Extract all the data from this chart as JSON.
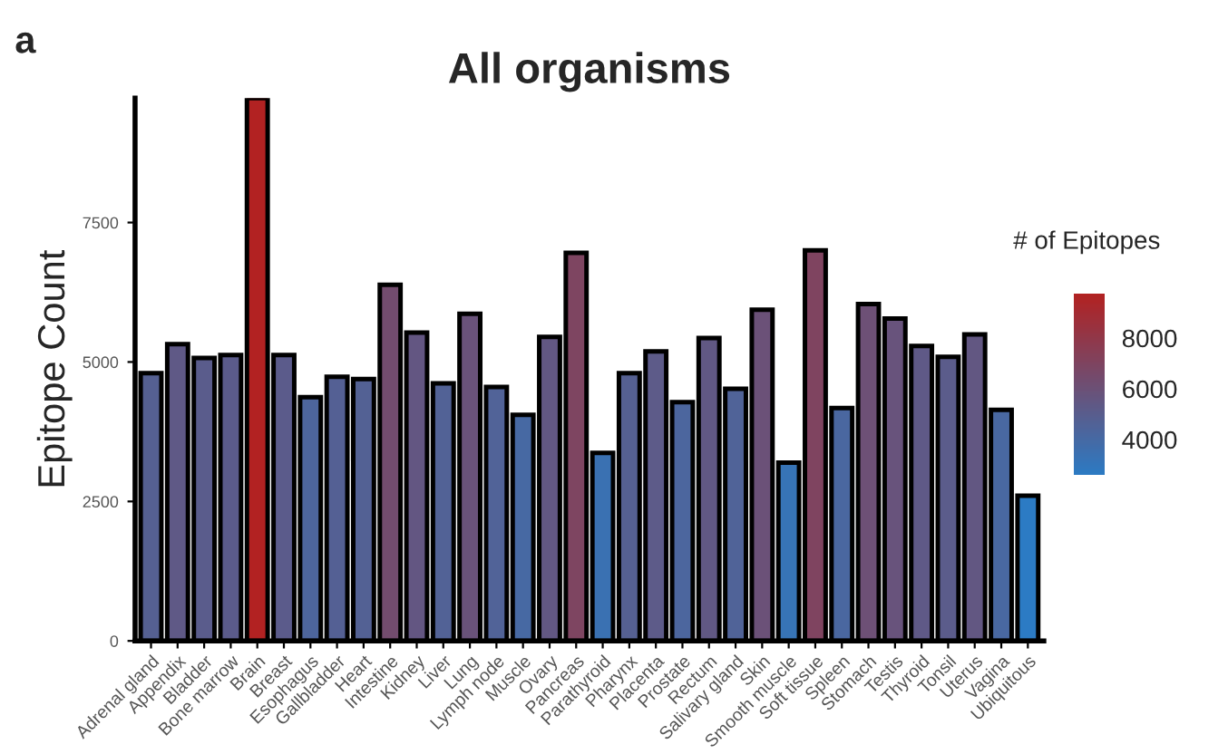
{
  "chart_data": {
    "type": "bar",
    "title": "All organisms",
    "ylabel": "Epitope Count",
    "clabel": "# of Epitopes",
    "annotations": [
      "a"
    ],
    "categories": [
      "Adrenal gland",
      "Appendix",
      "Bladder",
      "Bone marrow",
      "Brain",
      "Breast",
      "Esophagus",
      "Gallbladder",
      "Heart",
      "Intestine",
      "Kidney",
      "Liver",
      "Lung",
      "Lymph node",
      "Muscle",
      "Ovary",
      "Pancreas",
      "Parathyroid",
      "Pharynx",
      "Placenta",
      "Prostate",
      "Rectum",
      "Salivary gland",
      "Skin",
      "Smooth muscle",
      "Soft tissue",
      "Spleen",
      "Stomach",
      "Testis",
      "Thyroid",
      "Tonsil",
      "Uterus",
      "Vagina",
      "Ubiquitous"
    ],
    "values": [
      4801,
      5321,
      5072,
      5126,
      9732,
      5126,
      4368,
      4736,
      4693,
      6383,
      5527,
      4617,
      5863,
      4552,
      4053,
      5451,
      6958,
      3371,
      4801,
      5191,
      4281,
      5429,
      4519,
      5939,
      3197,
      7001,
      4173,
      6037,
      5777,
      5289,
      5094,
      5495,
      4140,
      2601
    ],
    "colors": [
      "#556092",
      "#5f5986",
      "#5a5c8c",
      "#5b5b8b",
      "#b22222",
      "#5b5b8b",
      "#4d659c",
      "#546094",
      "#536194",
      "#734c6e",
      "#635682",
      "#526296",
      "#69527a",
      "#516398",
      "#4769a3",
      "#625783",
      "#7e4561",
      "#3a71b2",
      "#556092",
      "#5d5b89",
      "#4c669e",
      "#615884",
      "#506398",
      "#6b5178",
      "#3774b6",
      "#7f4460",
      "#4a67a0",
      "#6d5076",
      "#68537c",
      "#5f5987",
      "#5b5c8b",
      "#625782",
      "#4968a1",
      "#2c7bc4"
    ],
    "ylim": [
      0,
      9732
    ],
    "yticks": [
      0,
      2500,
      5000,
      7500
    ],
    "clim": [
      2601,
      9732
    ],
    "cticks": [
      4000,
      6000,
      8000
    ],
    "grid": false,
    "legend": false
  }
}
